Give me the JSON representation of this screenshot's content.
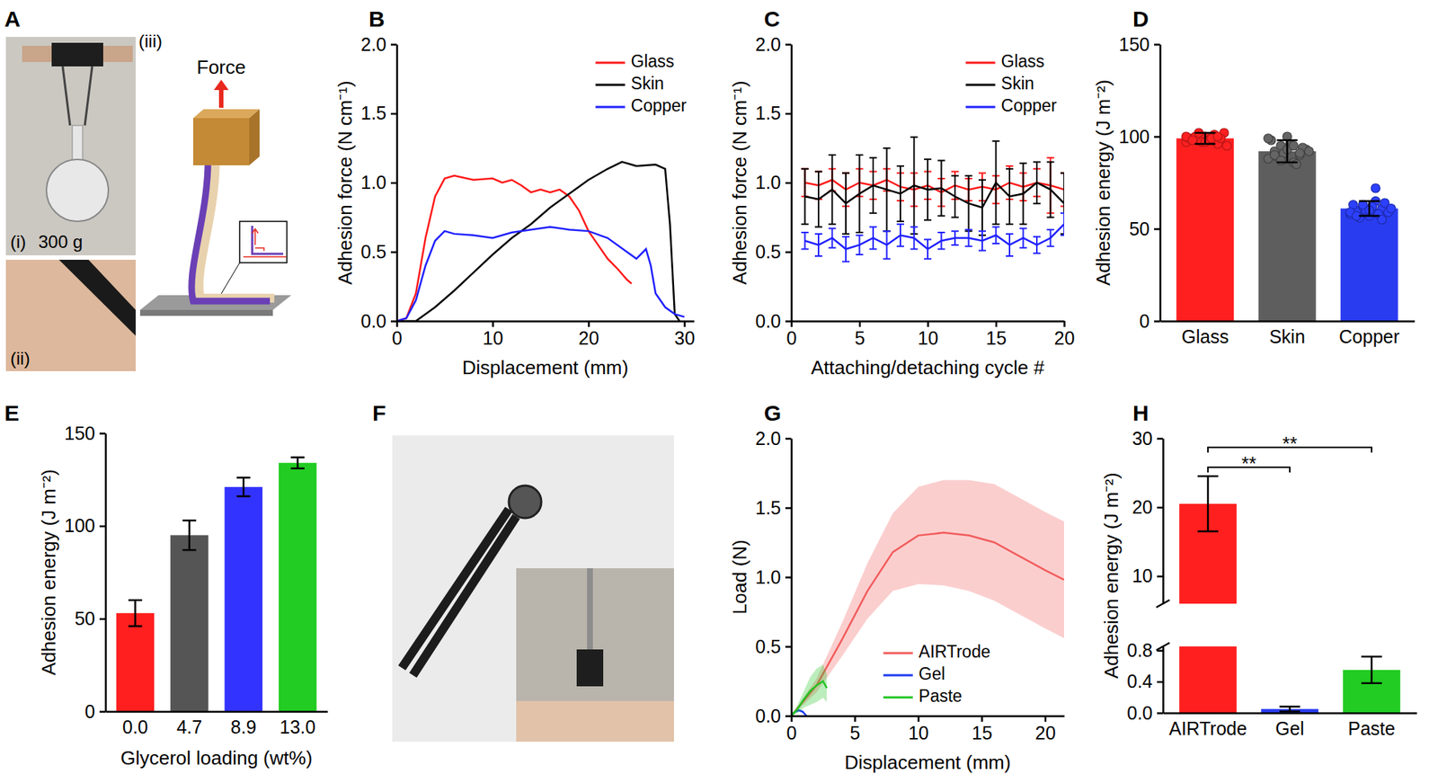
{
  "chart_data": [
    {
      "panel": "A",
      "type": "image",
      "annotations": [
        "(i)",
        "300 g",
        "(ii)",
        "(iii)",
        "Force"
      ]
    },
    {
      "panel": "B",
      "type": "line",
      "x_label": "Displacement (mm)",
      "y_label": "Adhesion force (N cm⁻¹)",
      "xlim": [
        0,
        31
      ],
      "xticks": [
        0,
        10,
        20,
        30
      ],
      "ylim": [
        0,
        2
      ],
      "yticks": [
        {
          "value": 0,
          "label": "0.0"
        },
        {
          "value": 0.5,
          "label": "0.5"
        },
        {
          "value": 1,
          "label": "1.0"
        },
        {
          "value": 1.5,
          "label": "1.5"
        },
        {
          "value": 2,
          "label": "2.0"
        }
      ],
      "legend": "upper right",
      "series": [
        {
          "name": "Glass",
          "color": "#ff1a1a",
          "x": [
            0,
            1,
            2,
            3,
            4,
            5,
            6,
            8,
            10,
            11,
            12,
            13,
            14,
            15,
            16,
            17,
            18,
            19,
            20,
            21,
            22,
            23,
            24,
            24.5
          ],
          "values": [
            0,
            0.02,
            0.2,
            0.6,
            0.9,
            1.03,
            1.05,
            1.02,
            1.03,
            1.0,
            1.02,
            0.98,
            0.93,
            0.95,
            0.93,
            0.95,
            0.9,
            0.8,
            0.65,
            0.55,
            0.45,
            0.38,
            0.3,
            0.27
          ]
        },
        {
          "name": "Skin",
          "color": "#000000",
          "x": [
            0,
            2,
            4,
            6,
            8,
            10,
            12,
            14,
            16,
            18,
            20,
            22,
            23.5,
            25,
            27,
            28,
            28.5,
            29,
            29.5
          ],
          "values": [
            0,
            0,
            0.1,
            0.22,
            0.35,
            0.48,
            0.6,
            0.7,
            0.82,
            0.92,
            1.02,
            1.1,
            1.15,
            1.12,
            1.13,
            1.1,
            0.7,
            0.05,
            0
          ]
        },
        {
          "name": "Copper",
          "color": "#2020ff",
          "x": [
            0,
            1,
            2,
            3,
            4,
            5,
            6,
            8,
            10,
            12,
            14,
            16,
            18,
            20,
            22,
            24,
            25,
            26,
            26.5,
            27,
            28,
            29,
            30
          ],
          "values": [
            0,
            0.02,
            0.15,
            0.4,
            0.58,
            0.65,
            0.63,
            0.62,
            0.6,
            0.64,
            0.66,
            0.68,
            0.66,
            0.65,
            0.6,
            0.5,
            0.45,
            0.52,
            0.4,
            0.2,
            0.1,
            0.05,
            0.03
          ]
        }
      ]
    },
    {
      "panel": "C",
      "type": "line",
      "x_label": "Attaching/detaching cycle #",
      "y_label": "Adhesion force (N cm⁻¹)",
      "xlim": [
        0,
        20
      ],
      "xticks": [
        0,
        5,
        10,
        15,
        20
      ],
      "ylim": [
        0,
        2
      ],
      "yticks": [
        {
          "value": 0,
          "label": "0.0"
        },
        {
          "value": 0.5,
          "label": "0.5"
        },
        {
          "value": 1,
          "label": "1.0"
        },
        {
          "value": 1.5,
          "label": "1.5"
        },
        {
          "value": 2,
          "label": "2.0"
        }
      ],
      "legend": "upper right",
      "x": [
        1,
        2,
        3,
        4,
        5,
        6,
        7,
        8,
        9,
        10,
        11,
        12,
        13,
        14,
        15,
        16,
        17,
        18,
        19,
        20
      ],
      "series": [
        {
          "name": "Glass",
          "color": "#ff1a1a",
          "values": [
            1.0,
            0.98,
            1.02,
            0.95,
            1.0,
            0.98,
            1.02,
            0.97,
            0.95,
            0.98,
            0.93,
            0.98,
            0.95,
            0.97,
            0.95,
            1.0,
            0.97,
            1.0,
            0.98,
            0.95
          ],
          "errors": [
            0.1,
            0.1,
            0.08,
            0.12,
            0.1,
            0.1,
            0.08,
            0.1,
            0.12,
            0.1,
            0.1,
            0.1,
            0.08,
            0.1,
            0.1,
            0.12,
            0.1,
            0.1,
            0.2,
            0.12
          ]
        },
        {
          "name": "Skin",
          "color": "#000000",
          "values": [
            0.9,
            0.88,
            0.95,
            0.85,
            0.92,
            0.98,
            0.95,
            0.92,
            0.98,
            0.95,
            0.96,
            0.9,
            0.85,
            0.82,
            1.0,
            0.9,
            0.92,
            1.0,
            0.95,
            0.85
          ],
          "errors": [
            0.2,
            0.2,
            0.25,
            0.22,
            0.28,
            0.2,
            0.3,
            0.2,
            0.35,
            0.22,
            0.2,
            0.15,
            0.2,
            0.2,
            0.3,
            0.2,
            0.22,
            0.15,
            0.2,
            0.22
          ]
        },
        {
          "name": "Copper",
          "color": "#2020ff",
          "values": [
            0.58,
            0.55,
            0.6,
            0.52,
            0.55,
            0.6,
            0.55,
            0.62,
            0.6,
            0.52,
            0.58,
            0.6,
            0.6,
            0.58,
            0.62,
            0.55,
            0.6,
            0.55,
            0.6,
            0.7
          ],
          "errors": [
            0.06,
            0.08,
            0.07,
            0.09,
            0.07,
            0.08,
            0.1,
            0.08,
            0.08,
            0.07,
            0.06,
            0.05,
            0.06,
            0.07,
            0.06,
            0.08,
            0.07,
            0.06,
            0.06,
            0.08
          ]
        }
      ]
    },
    {
      "panel": "D",
      "type": "bar",
      "y_label": "Adhesion energy (J m⁻²)",
      "categories": [
        "Glass",
        "Skin",
        "Copper"
      ],
      "values": [
        99,
        92,
        61
      ],
      "errors": [
        3,
        6,
        4
      ],
      "colors": [
        "#ff1f1f",
        "#5e5e5e",
        "#2a3cf0"
      ],
      "points": [
        [
          97,
          99,
          101,
          100,
          98,
          96,
          102,
          99,
          100,
          97,
          98,
          101,
          99,
          95,
          100,
          98,
          102,
          97,
          99,
          100
        ],
        [
          88,
          92,
          95,
          100,
          86,
          90,
          93,
          98,
          89,
          91,
          96,
          85,
          94,
          92,
          99,
          90,
          87,
          93,
          95,
          91
        ],
        [
          58,
          60,
          62,
          57,
          65,
          61,
          59,
          63,
          56,
          60,
          62,
          58,
          64,
          61,
          59,
          57,
          63,
          60,
          72,
          55
        ]
      ],
      "ylim": [
        0,
        150
      ],
      "yticks": [
        0,
        50,
        100,
        150
      ]
    },
    {
      "panel": "E",
      "type": "bar",
      "x_label": "Glycerol loading (wt%)",
      "y_label": "Adhesion energy (J m⁻²)",
      "categories": [
        "0.0",
        "4.7",
        "8.9",
        "13.0"
      ],
      "values": [
        53,
        95,
        121,
        134
      ],
      "errors": [
        7,
        8,
        5,
        3
      ],
      "colors": [
        "#ff1f1f",
        "#555555",
        "#3333ff",
        "#22cc22"
      ],
      "ylim": [
        0,
        150
      ],
      "yticks": [
        0,
        50,
        100,
        150
      ]
    },
    {
      "panel": "F",
      "type": "image"
    },
    {
      "panel": "G",
      "type": "band",
      "x_label": "Displacement (mm)",
      "y_label": "Load (N)",
      "xlim": [
        0,
        21.5
      ],
      "xticks": [
        0,
        5,
        10,
        15,
        20
      ],
      "ylim": [
        0,
        2
      ],
      "yticks": [
        {
          "value": 0,
          "label": "0.0"
        },
        {
          "value": 0.5,
          "label": "0.5"
        },
        {
          "value": 1,
          "label": "1.0"
        },
        {
          "value": 1.5,
          "label": "1.5"
        },
        {
          "value": 2,
          "label": "2.0"
        }
      ],
      "legend": "lower right",
      "series": [
        {
          "name": "AIRTrode",
          "color": "#f25c5c",
          "x": [
            0,
            2,
            4,
            6,
            8,
            10,
            12,
            14,
            16,
            18,
            20,
            21.5
          ],
          "values": [
            0,
            0.22,
            0.55,
            0.9,
            1.18,
            1.3,
            1.32,
            1.3,
            1.25,
            1.15,
            1.05,
            0.98
          ],
          "errors": [
            0,
            0.05,
            0.12,
            0.2,
            0.28,
            0.35,
            0.38,
            0.4,
            0.42,
            0.42,
            0.42,
            0.42
          ]
        },
        {
          "name": "Gel",
          "color": "#1f3df0",
          "x": [
            0,
            0.3,
            0.6,
            0.9,
            1.2
          ],
          "values": [
            0,
            0.03,
            0.04,
            0.03,
            0
          ],
          "errors": [
            0,
            0.01,
            0.01,
            0.01,
            0
          ]
        },
        {
          "name": "Paste",
          "color": "#22c422",
          "x": [
            0,
            0.5,
            1,
            1.5,
            2,
            2.5,
            2.8
          ],
          "values": [
            0,
            0.05,
            0.12,
            0.18,
            0.22,
            0.25,
            0.2
          ],
          "errors": [
            0,
            0.03,
            0.06,
            0.1,
            0.12,
            0.12,
            0.1
          ]
        }
      ]
    },
    {
      "panel": "H",
      "type": "bar",
      "y_label": "Adhesion energy (J m⁻²)",
      "categories": [
        "AIRTrode",
        "Gel",
        "Paste"
      ],
      "values": [
        20.5,
        0.05,
        0.55
      ],
      "errors": [
        4,
        0.03,
        0.17
      ],
      "colors": [
        "#ff1f1f",
        "#2a3cf0",
        "#22cc22"
      ],
      "ylim": [
        0,
        30
      ],
      "y_break": [
        0.85,
        6
      ],
      "yticks": [
        {
          "value": 0,
          "label": "0.0"
        },
        {
          "value": 0.4,
          "label": "0.4"
        },
        {
          "value": 0.8,
          "label": "0.8"
        },
        10,
        20,
        30
      ],
      "annotations": [
        "**",
        "**"
      ]
    }
  ]
}
